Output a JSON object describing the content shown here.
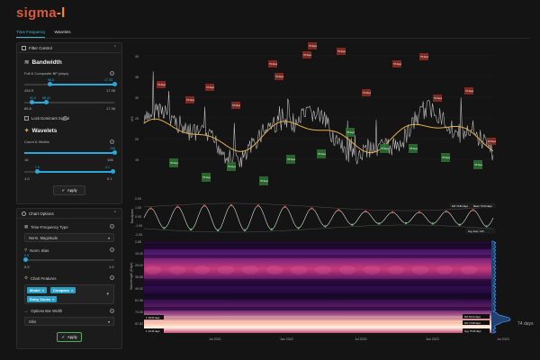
{
  "app": {
    "logo_main": "sigma",
    "logo_suffix": "-l"
  },
  "tabs": [
    {
      "label": "Time Frequency"
    },
    {
      "label": "Wavelets"
    }
  ],
  "filter_panel": {
    "title": "Filter Control",
    "bandwidth": {
      "heading": "Bandwidth",
      "label": "Full & Composite BP (days)",
      "slider1": {
        "ticks": [
          "98.8",
          "17.35"
        ],
        "min": "434.9",
        "max": "17.35"
      },
      "slider2": {
        "ticks": [
          "41.5",
          "88.41"
        ],
        "min": "85.8",
        "max": "17.36"
      }
    },
    "lock_label": "Lock Dominant Signal",
    "wavelets": {
      "heading": "Wavelets",
      "label": "Count & Widths",
      "slider1": {
        "tick": "196",
        "min": "16",
        "max": "196"
      },
      "slider2": {
        "ticks": [
          "1.0",
          "0.1"
        ],
        "min": "1.0",
        "max": "0.1"
      }
    },
    "apply_label": "Apply"
  },
  "chart_options": {
    "title": "Chart Options",
    "tf_type_label": "Time-Frequency Type",
    "tf_type_value": "Norm. Magnitude",
    "norm_bias_label": "Norm. Bias",
    "norm_bias": {
      "tick": "0.5",
      "min": "0.5",
      "max": "1.5",
      "value": 0
    },
    "features_label": "Chart Features",
    "features": [
      "Model",
      "Compass",
      "Entry Zones"
    ],
    "bar_width_label": "Options Bar Width",
    "bar_width_value": "Slim",
    "apply_label": "Apply"
  },
  "chart": {
    "ylabel": "VIX",
    "y_ticks": [
      "40",
      "35",
      "30",
      "25",
      "20",
      "15"
    ],
    "osc_ylabel": "Bandpass",
    "osc_ticks": [
      "2.00",
      "1.00",
      "0.00",
      "-1.00",
      "-2.00"
    ],
    "osc_legend": [
      "FM: 74.82 days",
      "Mean: 76.04 days"
    ],
    "osc_avg": "Avg. Amp: 1.03",
    "wave_ylabel": "Wavelength (Days)",
    "wave_ticks": [
      "2.86",
      "15.00",
      "25.02",
      "36.88",
      "49.52",
      "61.96",
      "74.00",
      "87.82"
    ],
    "marker_top": "FM: 63.44 days",
    "marker_bottom": "FM: 74.98 days",
    "marker_left": "1: 69.60 days",
    "marker_left2": "1: 91.26 days",
    "marker_avg": "Avg: 75.00 days",
    "side_label": "74 days",
    "x_ticks": [
      "Jul 2021",
      "Jan 2022",
      "Jul 2022",
      "Jan 2023",
      "Jul 2023"
    ],
    "peak_tag": "76 days",
    "trough_tag": "78 days"
  },
  "colors": {
    "accent": "#29a9d9",
    "peak": "#8a2a24",
    "trough": "#2b6d32",
    "trend": "#e8b04e"
  }
}
